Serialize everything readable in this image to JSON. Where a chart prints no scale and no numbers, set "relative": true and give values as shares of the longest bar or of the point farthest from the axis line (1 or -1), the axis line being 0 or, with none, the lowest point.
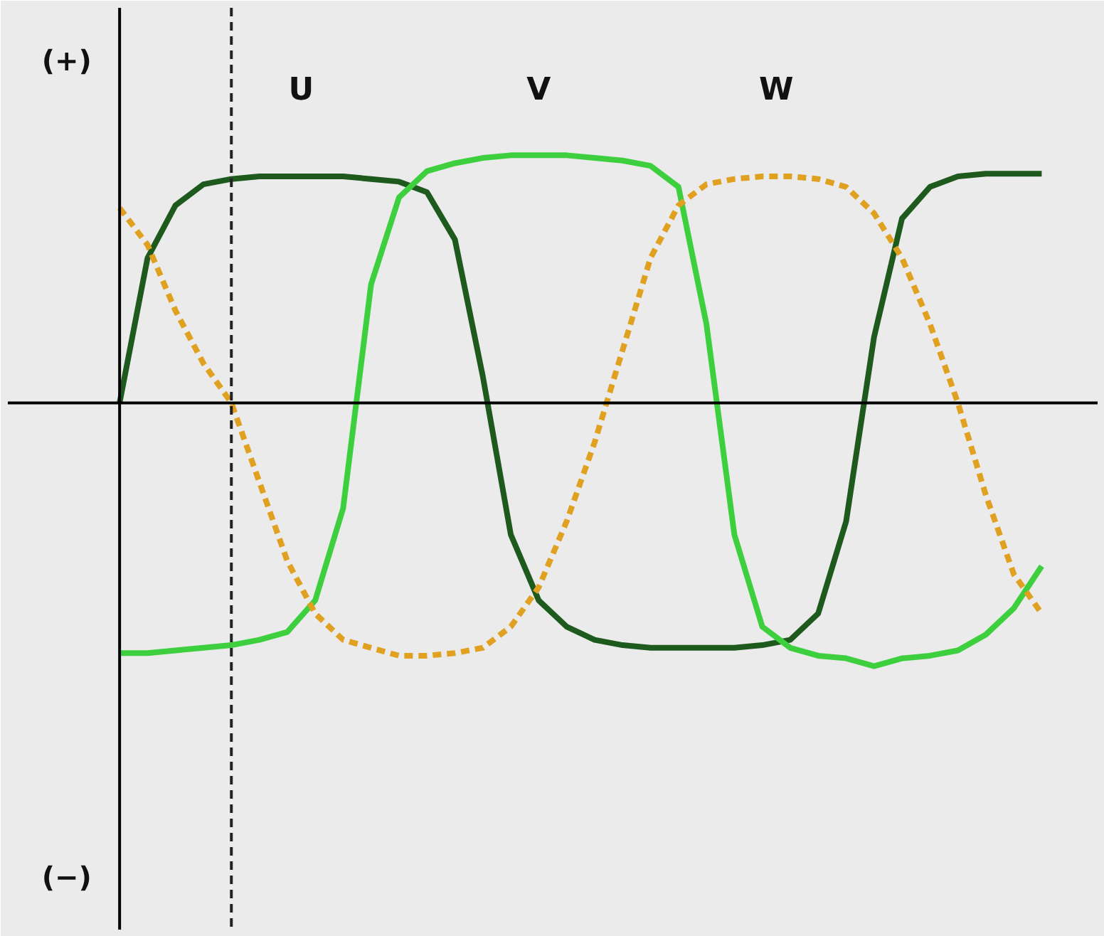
{
  "chart_data": {
    "type": "line",
    "relative": true,
    "categories": [
      null,
      null,
      null,
      null,
      null,
      null,
      null,
      null,
      null,
      null,
      null,
      null,
      null,
      null,
      null,
      null,
      null,
      null,
      null,
      null,
      null,
      null,
      null,
      null,
      null,
      null,
      null,
      null,
      null,
      null,
      null,
      null,
      null,
      null
    ],
    "series": [
      {
        "name": "U",
        "color": "#1e5a1e",
        "line_style": "solid",
        "values": [
          0,
          0.55,
          0.75,
          0.83,
          0.85,
          0.86,
          0.86,
          0.86,
          0.86,
          0.85,
          0.84,
          0.8,
          0.62,
          0.1,
          -0.5,
          -0.75,
          -0.85,
          -0.9,
          -0.92,
          -0.93,
          -0.93,
          -0.93,
          -0.93,
          -0.92,
          -0.9,
          -0.8,
          -0.45,
          0.25,
          0.7,
          0.82,
          0.86,
          0.87,
          0.87,
          0.87
        ]
      },
      {
        "name": "V",
        "color": "#3ecf3e",
        "line_style": "solid",
        "values": [
          -0.95,
          -0.95,
          -0.94,
          -0.93,
          -0.92,
          -0.9,
          -0.87,
          -0.75,
          -0.4,
          0.45,
          0.78,
          0.88,
          0.91,
          0.93,
          0.94,
          0.94,
          0.94,
          0.93,
          0.92,
          0.9,
          0.82,
          0.3,
          -0.5,
          -0.85,
          -0.93,
          -0.96,
          -0.97,
          -1,
          -0.97,
          -0.96,
          -0.94,
          -0.88,
          -0.78,
          -0.62
        ]
      },
      {
        "name": "W",
        "color": "#e0a020",
        "line_style": "dashed",
        "values": [
          0.74,
          0.6,
          0.35,
          0.15,
          0,
          -0.3,
          -0.6,
          -0.8,
          -0.9,
          -0.93,
          -0.96,
          -0.96,
          -0.95,
          -0.93,
          -0.85,
          -0.7,
          -0.45,
          -0.15,
          0.2,
          0.55,
          0.75,
          0.83,
          0.85,
          0.86,
          0.86,
          0.85,
          0.82,
          0.72,
          0.55,
          0.3,
          0.0,
          -0.35,
          -0.65,
          -0.8
        ]
      }
    ],
    "annotations": [
      "(+)",
      "(−)"
    ],
    "grid": false
  }
}
